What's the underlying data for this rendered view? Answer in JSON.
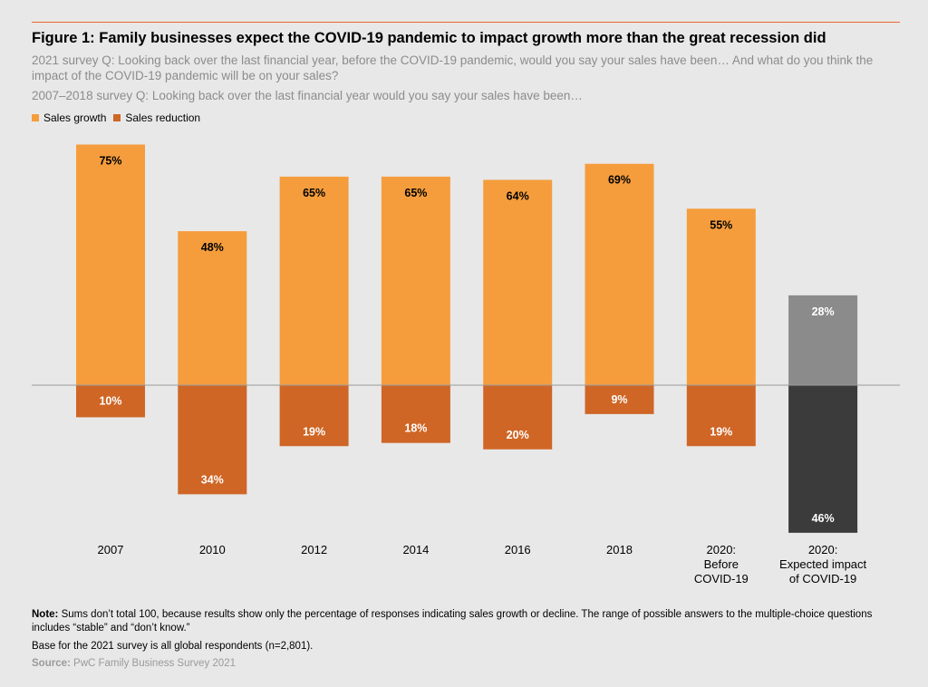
{
  "title": "Figure 1: Family businesses expect the COVID-19 pandemic to impact growth more than the great recession did",
  "subtitle_2021": "2021 survey Q: Looking back over the last financial year, before the COVID-19 pandemic, would you say your sales have been… And what do you think the impact of the COVID-19 pandemic will be on your sales?",
  "subtitle_2007": "2007–2018 survey Q: Looking back over the last financial year would you say your sales have been…",
  "legend": {
    "growth": "Sales growth",
    "reduction": "Sales reduction"
  },
  "colors": {
    "growth": "#f59d3d",
    "reduction": "#cf6626",
    "expected_growth": "#8b8b8b",
    "expected_reduction": "#3b3b3b",
    "accent_rule": "#e8692d",
    "axis": "#9a9a9a"
  },
  "chart_data": {
    "type": "bar",
    "title": "Figure 1: Family businesses expect the COVID-19 pandemic to impact growth more than the great recession did",
    "categories": [
      [
        "2007"
      ],
      [
        "2010"
      ],
      [
        "2012"
      ],
      [
        "2014"
      ],
      [
        "2016"
      ],
      [
        "2018"
      ],
      [
        "2020:",
        "Before",
        "COVID-19"
      ],
      [
        "2020:",
        "Expected impact",
        "of COVID-19"
      ]
    ],
    "series": [
      {
        "name": "Sales growth",
        "values": [
          75,
          48,
          65,
          65,
          64,
          69,
          55,
          28
        ]
      },
      {
        "name": "Sales reduction",
        "values": [
          -10,
          -34,
          -19,
          -18,
          -20,
          -9,
          -19,
          -46
        ]
      }
    ],
    "value_labels": {
      "growth": [
        "75%",
        "48%",
        "65%",
        "65%",
        "64%",
        "69%",
        "55%",
        "28%"
      ],
      "reduction": [
        "10%",
        "34%",
        "19%",
        "18%",
        "20%",
        "9%",
        "19%",
        "46%"
      ]
    },
    "highlight_last_category": true,
    "ylim": [
      -46,
      75
    ],
    "xlabel": "",
    "ylabel": "",
    "legend_position": "top-left"
  },
  "note": {
    "label": "Note:",
    "text": " Sums don’t total 100, because results show only the percentage of responses indicating sales growth or decline. The range of possible answers to the multiple-choice questions includes “stable” and “don’t know.”"
  },
  "base": "Base for the 2021 survey is all global respondents (n=2,801).",
  "source": {
    "label": "Source:",
    "text": " PwC Family Business Survey 2021"
  }
}
